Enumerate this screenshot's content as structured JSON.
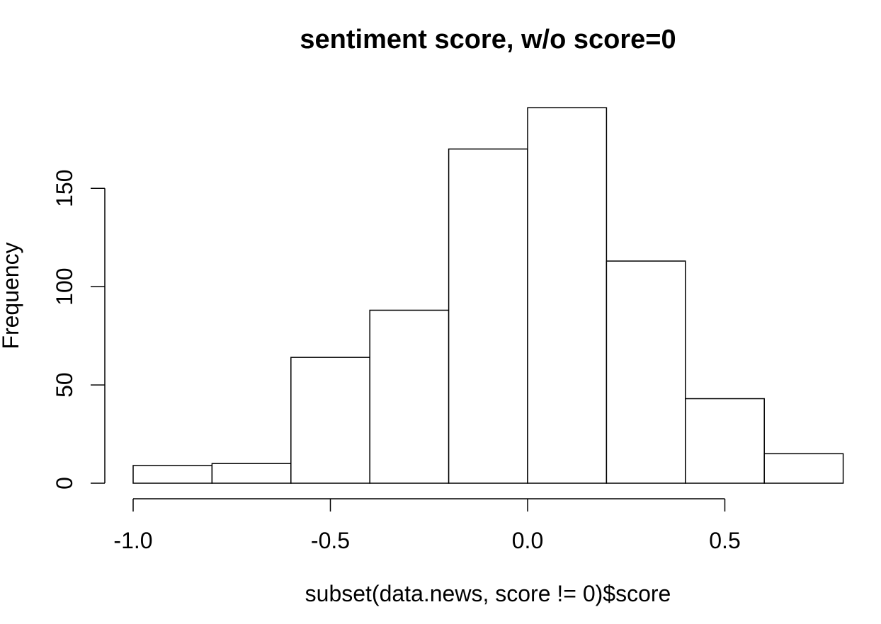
{
  "chart_data": {
    "type": "bar",
    "title": "sentiment score, w/o score=0",
    "xlabel": "subset(data.news, score != 0)$score",
    "ylabel": "Frequency",
    "bins": [
      {
        "start": -1.0,
        "end": -0.8,
        "count": 9
      },
      {
        "start": -0.8,
        "end": -0.6,
        "count": 10
      },
      {
        "start": -0.6,
        "end": -0.4,
        "count": 64
      },
      {
        "start": -0.4,
        "end": -0.2,
        "count": 88
      },
      {
        "start": -0.2,
        "end": 0.0,
        "count": 170
      },
      {
        "start": 0.0,
        "end": 0.2,
        "count": 191
      },
      {
        "start": 0.2,
        "end": 0.4,
        "count": 113
      },
      {
        "start": 0.4,
        "end": 0.6,
        "count": 43
      },
      {
        "start": 0.6,
        "end": 0.8,
        "count": 15
      }
    ],
    "xlim": [
      -1.0,
      0.8
    ],
    "ylim": [
      0,
      191
    ],
    "x_ticks": [
      -1.0,
      -0.5,
      0.0,
      0.5
    ],
    "x_tick_labels": [
      "-1.0",
      "-0.5",
      "0.0",
      "0.5"
    ],
    "y_ticks": [
      0,
      50,
      100,
      150
    ],
    "y_tick_labels": [
      "0",
      "50",
      "100",
      "150"
    ],
    "grid": false,
    "colors": {
      "bar_fill": "#ffffff",
      "bar_stroke": "#000000"
    }
  }
}
